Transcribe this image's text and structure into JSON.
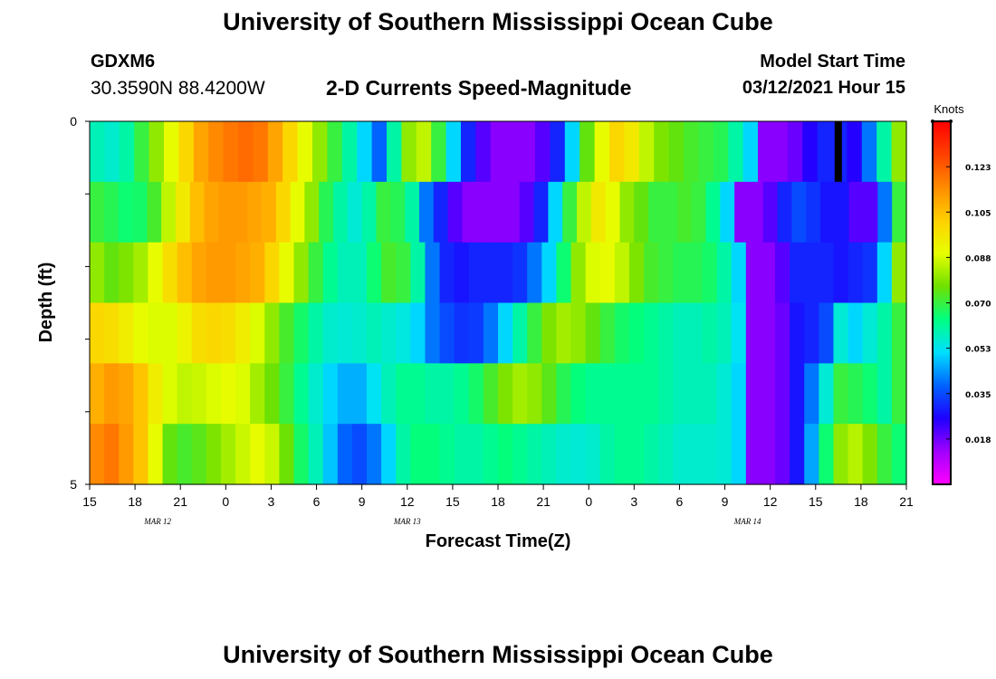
{
  "header": {
    "title": "University of Southern Mississippi Ocean Cube",
    "station_name": "GDXM6",
    "station_coords": "30.3590N 88.4200W",
    "plot_title": "2-D Currents Speed-Magnitude",
    "start_label": "Model Start Time",
    "start_value": "03/12/2021 Hour 15"
  },
  "footer": {
    "title": "University of Southern Mississippi Ocean Cube"
  },
  "chart_data": {
    "type": "heatmap",
    "title": "2-D Currents Speed-Magnitude",
    "xlabel": "Forecast Time(Z)",
    "ylabel": "Depth (ft)",
    "x_tick_labels": [
      "15",
      "18",
      "21",
      "0",
      "3",
      "6",
      "9",
      "12",
      "15",
      "18",
      "21",
      "0",
      "3",
      "6",
      "9",
      "12",
      "15",
      "18",
      "21"
    ],
    "date_labels": [
      {
        "text": "MAR 12",
        "hour_index": 4.5
      },
      {
        "text": "MAR 13",
        "hour_index": 21
      },
      {
        "text": "MAR 14",
        "hour_index": 43.5
      }
    ],
    "x_range_hours": [
      0,
      54
    ],
    "y_tick_labels": [
      "0",
      "5"
    ],
    "y_range": [
      0,
      5
    ],
    "depth_rows": [
      0.25,
      1.0,
      2.0,
      3.0,
      4.0,
      4.75
    ],
    "colorbar": {
      "unit": "Knots",
      "range": [
        0,
        0.14
      ],
      "tick_labels": [
        "0.123",
        "0.105",
        "0.088",
        "0.070",
        "0.053",
        "0.035",
        "0.018"
      ],
      "colors": [
        "#ff00ff",
        "#a000ff",
        "#1e00ff",
        "#0064ff",
        "#00e0ff",
        "#00ff80",
        "#6ee000",
        "#e6ff00",
        "#ffd000",
        "#ff8c00",
        "#ff4000",
        "#ff0000"
      ]
    },
    "missing_marker_hour": 49.5,
    "speed_knots": [
      [
        0.058,
        0.056,
        0.06,
        0.07,
        0.08,
        0.09,
        0.1,
        0.11,
        0.115,
        0.118,
        0.12,
        0.118,
        0.11,
        0.1,
        0.09,
        0.08,
        0.07,
        0.06,
        0.05,
        0.038,
        0.06,
        0.08,
        0.085,
        0.07,
        0.05,
        0.03,
        0.02,
        0.015,
        0.015,
        0.015,
        0.02,
        0.03,
        0.05,
        0.075,
        0.09,
        0.1,
        0.095,
        0.085,
        0.078,
        0.075,
        0.072,
        0.07,
        0.068,
        0.06,
        0.05,
        0.015,
        0.015,
        0.018,
        0.025,
        0.03,
        0.03,
        0.025,
        0.04,
        0.06,
        0.08
      ],
      [
        0.07,
        0.068,
        0.065,
        0.066,
        0.072,
        0.085,
        0.095,
        0.105,
        0.11,
        0.112,
        0.112,
        0.11,
        0.108,
        0.1,
        0.09,
        0.08,
        0.068,
        0.06,
        0.055,
        0.06,
        0.07,
        0.068,
        0.06,
        0.04,
        0.03,
        0.02,
        0.015,
        0.015,
        0.015,
        0.015,
        0.02,
        0.03,
        0.05,
        0.07,
        0.085,
        0.095,
        0.09,
        0.08,
        0.075,
        0.07,
        0.07,
        0.072,
        0.07,
        0.062,
        0.05,
        0.015,
        0.015,
        0.02,
        0.03,
        0.035,
        0.032,
        0.028,
        0.028,
        0.02,
        0.02,
        0.04,
        0.07
      ],
      [
        0.08,
        0.075,
        0.078,
        0.082,
        0.09,
        0.098,
        0.105,
        0.11,
        0.112,
        0.112,
        0.11,
        0.108,
        0.1,
        0.09,
        0.08,
        0.07,
        0.062,
        0.058,
        0.058,
        0.065,
        0.072,
        0.07,
        0.06,
        0.04,
        0.03,
        0.028,
        0.03,
        0.03,
        0.03,
        0.032,
        0.04,
        0.05,
        0.065,
        0.08,
        0.088,
        0.09,
        0.085,
        0.078,
        0.072,
        0.07,
        0.068,
        0.068,
        0.066,
        0.06,
        0.05,
        0.015,
        0.015,
        0.02,
        0.03,
        0.03,
        0.03,
        0.028,
        0.03,
        0.032,
        0.05,
        0.08
      ],
      [
        0.1,
        0.098,
        0.094,
        0.09,
        0.088,
        0.088,
        0.092,
        0.098,
        0.1,
        0.098,
        0.094,
        0.088,
        0.08,
        0.072,
        0.066,
        0.06,
        0.056,
        0.055,
        0.056,
        0.058,
        0.056,
        0.054,
        0.05,
        0.04,
        0.035,
        0.032,
        0.033,
        0.04,
        0.05,
        0.06,
        0.07,
        0.078,
        0.082,
        0.08,
        0.075,
        0.07,
        0.066,
        0.064,
        0.062,
        0.06,
        0.058,
        0.058,
        0.06,
        0.058,
        0.052,
        0.015,
        0.015,
        0.018,
        0.028,
        0.03,
        0.035,
        0.055,
        0.05,
        0.055,
        0.06,
        0.07
      ],
      [
        0.108,
        0.112,
        0.11,
        0.104,
        0.094,
        0.088,
        0.085,
        0.086,
        0.088,
        0.09,
        0.088,
        0.082,
        0.076,
        0.07,
        0.062,
        0.056,
        0.05,
        0.046,
        0.046,
        0.052,
        0.058,
        0.062,
        0.062,
        0.06,
        0.06,
        0.062,
        0.066,
        0.072,
        0.078,
        0.082,
        0.08,
        0.074,
        0.068,
        0.064,
        0.062,
        0.062,
        0.062,
        0.062,
        0.062,
        0.06,
        0.058,
        0.058,
        0.058,
        0.055,
        0.05,
        0.015,
        0.015,
        0.018,
        0.028,
        0.04,
        0.055,
        0.07,
        0.068,
        0.065,
        0.06,
        0.07
      ],
      [
        0.115,
        0.118,
        0.112,
        0.104,
        0.09,
        0.075,
        0.072,
        0.074,
        0.078,
        0.082,
        0.086,
        0.09,
        0.086,
        0.076,
        0.066,
        0.058,
        0.048,
        0.038,
        0.035,
        0.04,
        0.05,
        0.06,
        0.064,
        0.064,
        0.062,
        0.06,
        0.06,
        0.062,
        0.064,
        0.062,
        0.06,
        0.058,
        0.056,
        0.055,
        0.056,
        0.06,
        0.062,
        0.062,
        0.06,
        0.058,
        0.056,
        0.056,
        0.056,
        0.055,
        0.05,
        0.015,
        0.015,
        0.018,
        0.028,
        0.045,
        0.065,
        0.08,
        0.084,
        0.078,
        0.07,
        0.065
      ]
    ]
  }
}
